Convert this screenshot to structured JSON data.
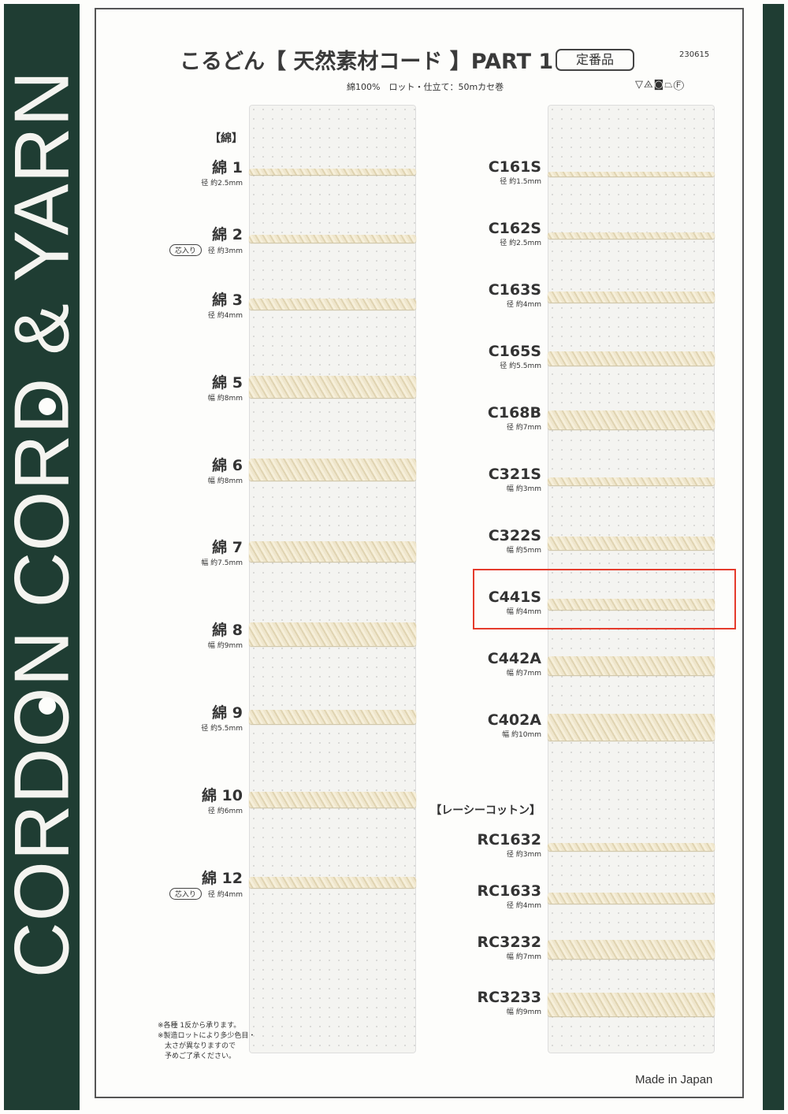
{
  "side_band": {
    "text": "CORDON CORD & YARN"
  },
  "header": {
    "title": "こるどん【 天然素材コード 】PART 1",
    "badge": "定番品",
    "code": "230615",
    "subtitle": "綿100%　ロット・仕立て：50mカセ巻",
    "care_icons": [
      "wash-30-icon",
      "no-bleach-icon",
      "tumble-dry-icon",
      "iron-icon",
      "dry-clean-f-icon"
    ],
    "care_glyphs": "▽⨻◙⏢Ⓕ"
  },
  "left": {
    "section": "【綿】",
    "items": [
      {
        "name": "綿 1",
        "spec": "径 約2.5mm",
        "mm": 2.5
      },
      {
        "name": "綿 2",
        "spec": "径 約3mm",
        "mm": 3,
        "core": "芯入り"
      },
      {
        "name": "綿 3",
        "spec": "径 約4mm",
        "mm": 4
      },
      {
        "name": "綿 5",
        "spec": "幅 約8mm",
        "mm": 8
      },
      {
        "name": "綿 6",
        "spec": "幅 約8mm",
        "mm": 8
      },
      {
        "name": "綿 7",
        "spec": "幅 約7.5mm",
        "mm": 7.5
      },
      {
        "name": "綿 8",
        "spec": "幅 約9mm",
        "mm": 9
      },
      {
        "name": "綿 9",
        "spec": "径 約5.5mm",
        "mm": 5.5
      },
      {
        "name": "綿 10",
        "spec": "径 約6mm",
        "mm": 6
      },
      {
        "name": "綿 12",
        "spec": "径 約4mm",
        "mm": 4,
        "core": "芯入り"
      }
    ]
  },
  "right": {
    "items": [
      {
        "name": "C161S",
        "spec": "径 約1.5mm",
        "mm": 1.5
      },
      {
        "name": "C162S",
        "spec": "径 約2.5mm",
        "mm": 2.5
      },
      {
        "name": "C163S",
        "spec": "径 約4mm",
        "mm": 4
      },
      {
        "name": "C165S",
        "spec": "径 約5.5mm",
        "mm": 5.5
      },
      {
        "name": "C168B",
        "spec": "径 約7mm",
        "mm": 7
      },
      {
        "name": "C321S",
        "spec": "幅 約3mm",
        "mm": 3
      },
      {
        "name": "C322S",
        "spec": "幅 約5mm",
        "mm": 5
      },
      {
        "name": "C441S",
        "spec": "幅 約4mm",
        "mm": 4,
        "highlighted": true
      },
      {
        "name": "C442A",
        "spec": "幅 約7mm",
        "mm": 7
      },
      {
        "name": "C402A",
        "spec": "幅 約10mm",
        "mm": 10
      }
    ],
    "section2": "【レーシーコットン】",
    "items2": [
      {
        "name": "RC1632",
        "spec": "径 約3mm",
        "mm": 3
      },
      {
        "name": "RC1633",
        "spec": "径 約4mm",
        "mm": 4
      },
      {
        "name": "RC3232",
        "spec": "幅 約7mm",
        "mm": 7
      },
      {
        "name": "RC3233",
        "spec": "幅 約9mm",
        "mm": 9
      }
    ]
  },
  "notes": [
    "※各種 1反から承ります。",
    "※製造ロットにより多少色目・",
    "　太さが異なりますので",
    "　予めご了承ください。"
  ],
  "footer": {
    "made_in": "Made in Japan"
  },
  "colors": {
    "band": "#1f3d33",
    "highlight": "#e53b2c",
    "cord": "#efe6cc"
  }
}
